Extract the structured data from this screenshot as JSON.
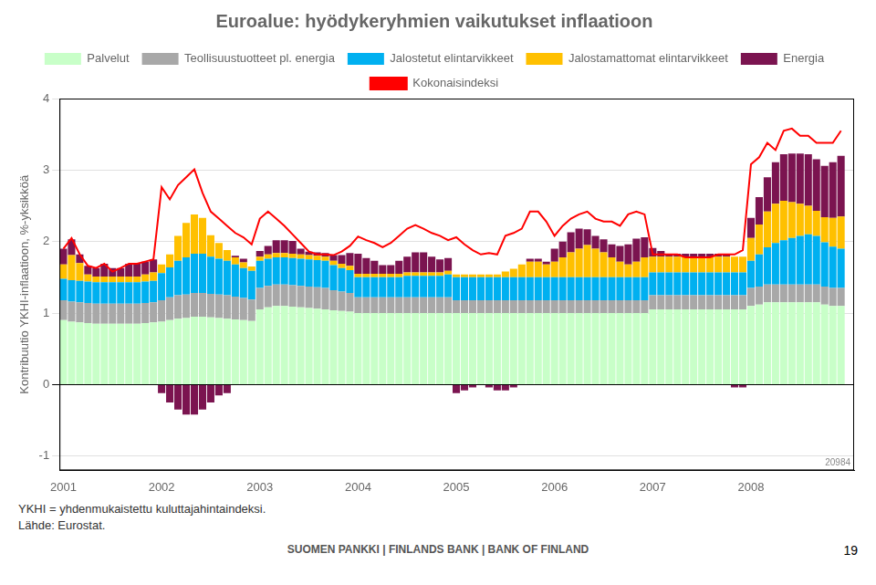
{
  "chart_data": {
    "type": "bar",
    "title": "Euroalue: hyödykeryhmien vaikutukset inflaatioon",
    "y_label": "Kontribuutio YKHI-inflaatioon, %-yksikköä",
    "annotations": [
      "YKHI = yhdenmukaistettu kuluttajahintaindeksi.",
      "Lähde: Eurostat.",
      "20984",
      "SUOMEN PANKKI  |  FINLANDS BANK  |  BANK OF FINLAND",
      "19"
    ],
    "stacked": true,
    "grid": true,
    "legend": "top",
    "xlim": [
      2000.96,
      2009.05
    ],
    "xticks": [
      2001,
      2002,
      2003,
      2004,
      2005,
      2006,
      2007,
      2008
    ],
    "ylim": [
      -1.2,
      4.0
    ],
    "yticks": [
      -1,
      0,
      1,
      2,
      3,
      4
    ],
    "x": [
      2001,
      2001.0833333333,
      2001.1666666667,
      2001.25,
      2001.3333333333,
      2001.4166666667,
      2001.5,
      2001.5833333333,
      2001.6666666667,
      2001.75,
      2001.8333333333,
      2001.9166666667,
      2002,
      2002.0833333333,
      2002.1666666667,
      2002.25,
      2002.3333333333,
      2002.4166666667,
      2002.5,
      2002.5833333333,
      2002.6666666667,
      2002.75,
      2002.8333333333,
      2002.9166666667,
      2003,
      2003.0833333333,
      2003.1666666667,
      2003.25,
      2003.3333333333,
      2003.4166666667,
      2003.5,
      2003.5833333333,
      2003.6666666667,
      2003.75,
      2003.8333333333,
      2003.9166666667,
      2004,
      2004.0833333333,
      2004.1666666667,
      2004.25,
      2004.3333333333,
      2004.4166666667,
      2004.5,
      2004.5833333333,
      2004.6666666667,
      2004.75,
      2004.8333333333,
      2004.9166666667,
      2005,
      2005.0833333333,
      2005.1666666667,
      2005.25,
      2005.3333333333,
      2005.4166666667,
      2005.5,
      2005.5833333333,
      2005.6666666667,
      2005.75,
      2005.8333333333,
      2005.9166666667,
      2006,
      2006.0833333333,
      2006.1666666667,
      2006.25,
      2006.3333333333,
      2006.4166666667,
      2006.5,
      2006.5833333333,
      2006.6666666667,
      2006.75,
      2006.8333333333,
      2006.9166666667,
      2007,
      2007.0833333333,
      2007.1666666667,
      2007.25,
      2007.3333333333,
      2007.4166666667,
      2007.5,
      2007.5833333333,
      2007.6666666667,
      2007.75,
      2007.8333333333,
      2007.9166666667,
      2008,
      2008.0833333333,
      2008.1666666667,
      2008.25,
      2008.3333333333,
      2008.4166666667,
      2008.5,
      2008.5833333333,
      2008.6666666667,
      2008.75,
      2008.8333333333,
      2008.9166666667
    ],
    "series": [
      {
        "name": "Palvelut",
        "color": "#c8ffc8",
        "values": [
          0.9,
          0.88,
          0.87,
          0.86,
          0.85,
          0.85,
          0.85,
          0.85,
          0.85,
          0.85,
          0.86,
          0.87,
          0.88,
          0.9,
          0.92,
          0.93,
          0.95,
          0.95,
          0.94,
          0.93,
          0.92,
          0.91,
          0.9,
          0.89,
          1.05,
          1.08,
          1.1,
          1.1,
          1.09,
          1.08,
          1.07,
          1.06,
          1.05,
          1.04,
          1.03,
          1.02,
          1.0,
          1.0,
          1.0,
          1.0,
          1.0,
          1.0,
          1.0,
          1.0,
          1.0,
          1.0,
          1.0,
          1.0,
          1.0,
          1.0,
          1.0,
          1.0,
          1.0,
          1.0,
          1.0,
          1.0,
          1.0,
          1.0,
          1.0,
          1.0,
          1.0,
          1.0,
          1.0,
          1.0,
          1.0,
          1.0,
          1.0,
          1.0,
          1.0,
          1.0,
          1.0,
          1.0,
          1.05,
          1.05,
          1.05,
          1.05,
          1.05,
          1.05,
          1.05,
          1.05,
          1.05,
          1.05,
          1.05,
          1.05,
          1.1,
          1.12,
          1.15,
          1.15,
          1.15,
          1.15,
          1.15,
          1.15,
          1.15,
          1.12,
          1.1,
          1.1
        ]
      },
      {
        "name": "Teollisuustuotteet pl. energia",
        "color": "#a8a8a8",
        "values": [
          0.28,
          0.28,
          0.28,
          0.28,
          0.28,
          0.28,
          0.28,
          0.28,
          0.28,
          0.28,
          0.28,
          0.28,
          0.3,
          0.32,
          0.33,
          0.33,
          0.33,
          0.33,
          0.33,
          0.33,
          0.33,
          0.32,
          0.31,
          0.3,
          0.3,
          0.3,
          0.3,
          0.3,
          0.3,
          0.3,
          0.3,
          0.3,
          0.3,
          0.28,
          0.27,
          0.26,
          0.22,
          0.22,
          0.22,
          0.22,
          0.22,
          0.22,
          0.22,
          0.22,
          0.22,
          0.22,
          0.22,
          0.22,
          0.18,
          0.18,
          0.18,
          0.18,
          0.18,
          0.18,
          0.18,
          0.18,
          0.18,
          0.18,
          0.18,
          0.18,
          0.18,
          0.18,
          0.18,
          0.18,
          0.18,
          0.18,
          0.18,
          0.18,
          0.18,
          0.18,
          0.18,
          0.18,
          0.2,
          0.2,
          0.2,
          0.2,
          0.2,
          0.2,
          0.2,
          0.2,
          0.2,
          0.2,
          0.2,
          0.2,
          0.25,
          0.25,
          0.25,
          0.25,
          0.25,
          0.25,
          0.25,
          0.25,
          0.25,
          0.25,
          0.25,
          0.25
        ]
      },
      {
        "name": "Jalostetut elintarvikkeet",
        "color": "#00b0f0",
        "values": [
          0.3,
          0.3,
          0.3,
          0.3,
          0.3,
          0.3,
          0.3,
          0.3,
          0.3,
          0.3,
          0.3,
          0.3,
          0.38,
          0.42,
          0.48,
          0.52,
          0.55,
          0.55,
          0.52,
          0.5,
          0.48,
          0.45,
          0.42,
          0.4,
          0.38,
          0.38,
          0.38,
          0.38,
          0.38,
          0.38,
          0.38,
          0.38,
          0.38,
          0.35,
          0.33,
          0.32,
          0.28,
          0.28,
          0.28,
          0.28,
          0.28,
          0.28,
          0.3,
          0.3,
          0.3,
          0.3,
          0.3,
          0.32,
          0.32,
          0.32,
          0.32,
          0.32,
          0.32,
          0.32,
          0.32,
          0.32,
          0.32,
          0.32,
          0.32,
          0.32,
          0.32,
          0.32,
          0.32,
          0.32,
          0.32,
          0.32,
          0.32,
          0.32,
          0.32,
          0.32,
          0.32,
          0.32,
          0.32,
          0.32,
          0.32,
          0.32,
          0.32,
          0.32,
          0.32,
          0.32,
          0.32,
          0.32,
          0.32,
          0.32,
          0.38,
          0.45,
          0.52,
          0.58,
          0.62,
          0.65,
          0.68,
          0.7,
          0.68,
          0.62,
          0.58,
          0.55
        ]
      },
      {
        "name": "Jalostamattomat elintarvikkeet",
        "color": "#ffc000",
        "values": [
          0.2,
          0.35,
          0.25,
          0.1,
          0.08,
          0.08,
          0.08,
          0.08,
          0.08,
          0.08,
          0.1,
          0.12,
          0.12,
          0.18,
          0.35,
          0.48,
          0.55,
          0.5,
          0.3,
          0.22,
          0.15,
          0.1,
          0.08,
          0.06,
          0.06,
          0.06,
          0.06,
          0.06,
          0.06,
          0.06,
          0.06,
          0.06,
          0.06,
          0.06,
          0.06,
          0.06,
          0.05,
          0.05,
          0.05,
          0.05,
          0.05,
          0.05,
          0.05,
          0.05,
          0.05,
          0.05,
          0.05,
          0.05,
          0.04,
          0.04,
          0.04,
          0.04,
          0.04,
          0.04,
          0.08,
          0.12,
          0.18,
          0.22,
          0.22,
          0.18,
          0.22,
          0.28,
          0.35,
          0.4,
          0.45,
          0.4,
          0.35,
          0.28,
          0.22,
          0.18,
          0.22,
          0.28,
          0.22,
          0.22,
          0.22,
          0.22,
          0.22,
          0.22,
          0.22,
          0.22,
          0.22,
          0.22,
          0.22,
          0.22,
          0.32,
          0.42,
          0.5,
          0.55,
          0.55,
          0.5,
          0.45,
          0.4,
          0.35,
          0.35,
          0.4,
          0.45
        ]
      },
      {
        "name": "Energia",
        "color": "#7b1450",
        "values": [
          0.22,
          0.22,
          0.12,
          0.12,
          0.12,
          0.18,
          0.12,
          0.12,
          0.18,
          0.18,
          0.18,
          0.18,
          -0.12,
          -0.25,
          -0.35,
          -0.42,
          -0.42,
          -0.35,
          -0.25,
          -0.15,
          -0.12,
          0.02,
          0.05,
          0.0,
          0.08,
          0.12,
          0.18,
          0.18,
          0.18,
          0.08,
          0.05,
          0.05,
          0.05,
          0.08,
          0.12,
          0.18,
          0.28,
          0.22,
          0.18,
          0.12,
          0.12,
          0.18,
          0.22,
          0.28,
          0.28,
          0.22,
          0.18,
          0.18,
          -0.12,
          -0.08,
          -0.04,
          0.0,
          -0.04,
          -0.08,
          -0.08,
          -0.04,
          0.0,
          0.04,
          0.04,
          0.04,
          0.18,
          0.22,
          0.28,
          0.28,
          0.22,
          0.18,
          0.18,
          0.18,
          0.22,
          0.28,
          0.32,
          0.28,
          0.12,
          0.08,
          0.04,
          0.04,
          0.04,
          0.04,
          0.04,
          0.04,
          0.04,
          0.04,
          -0.04,
          -0.04,
          0.28,
          0.38,
          0.48,
          0.58,
          0.65,
          0.68,
          0.7,
          0.72,
          0.72,
          0.72,
          0.78,
          0.85
        ]
      },
      {
        "name": "Kokonaisindeksi",
        "type": "line",
        "color": "#ff0000",
        "values": [
          1.9,
          2.05,
          1.82,
          1.66,
          1.63,
          1.69,
          1.58,
          1.63,
          1.69,
          1.69,
          1.72,
          1.75,
          2.76,
          2.59,
          2.79,
          2.9,
          3.01,
          2.68,
          2.42,
          2.32,
          2.22,
          2.12,
          2.06,
          1.96,
          2.32,
          2.42,
          2.32,
          2.22,
          2.1,
          1.98,
          1.86,
          1.82,
          1.82,
          1.81,
          1.86,
          1.94,
          2.07,
          2.02,
          1.98,
          1.92,
          1.98,
          2.08,
          2.18,
          2.23,
          2.18,
          2.12,
          2.08,
          2.02,
          2.06,
          1.96,
          1.88,
          1.82,
          1.84,
          1.82,
          2.08,
          2.12,
          2.18,
          2.42,
          2.42,
          2.28,
          2.08,
          2.22,
          2.32,
          2.38,
          2.42,
          2.32,
          2.28,
          2.28,
          2.22,
          2.38,
          2.42,
          2.38,
          1.82,
          1.82,
          1.82,
          1.82,
          1.78,
          1.78,
          1.78,
          1.78,
          1.82,
          1.82,
          1.82,
          1.88,
          3.08,
          3.18,
          3.38,
          3.28,
          3.55,
          3.58,
          3.48,
          3.48,
          3.38,
          3.38,
          3.38,
          3.55
        ]
      }
    ]
  }
}
